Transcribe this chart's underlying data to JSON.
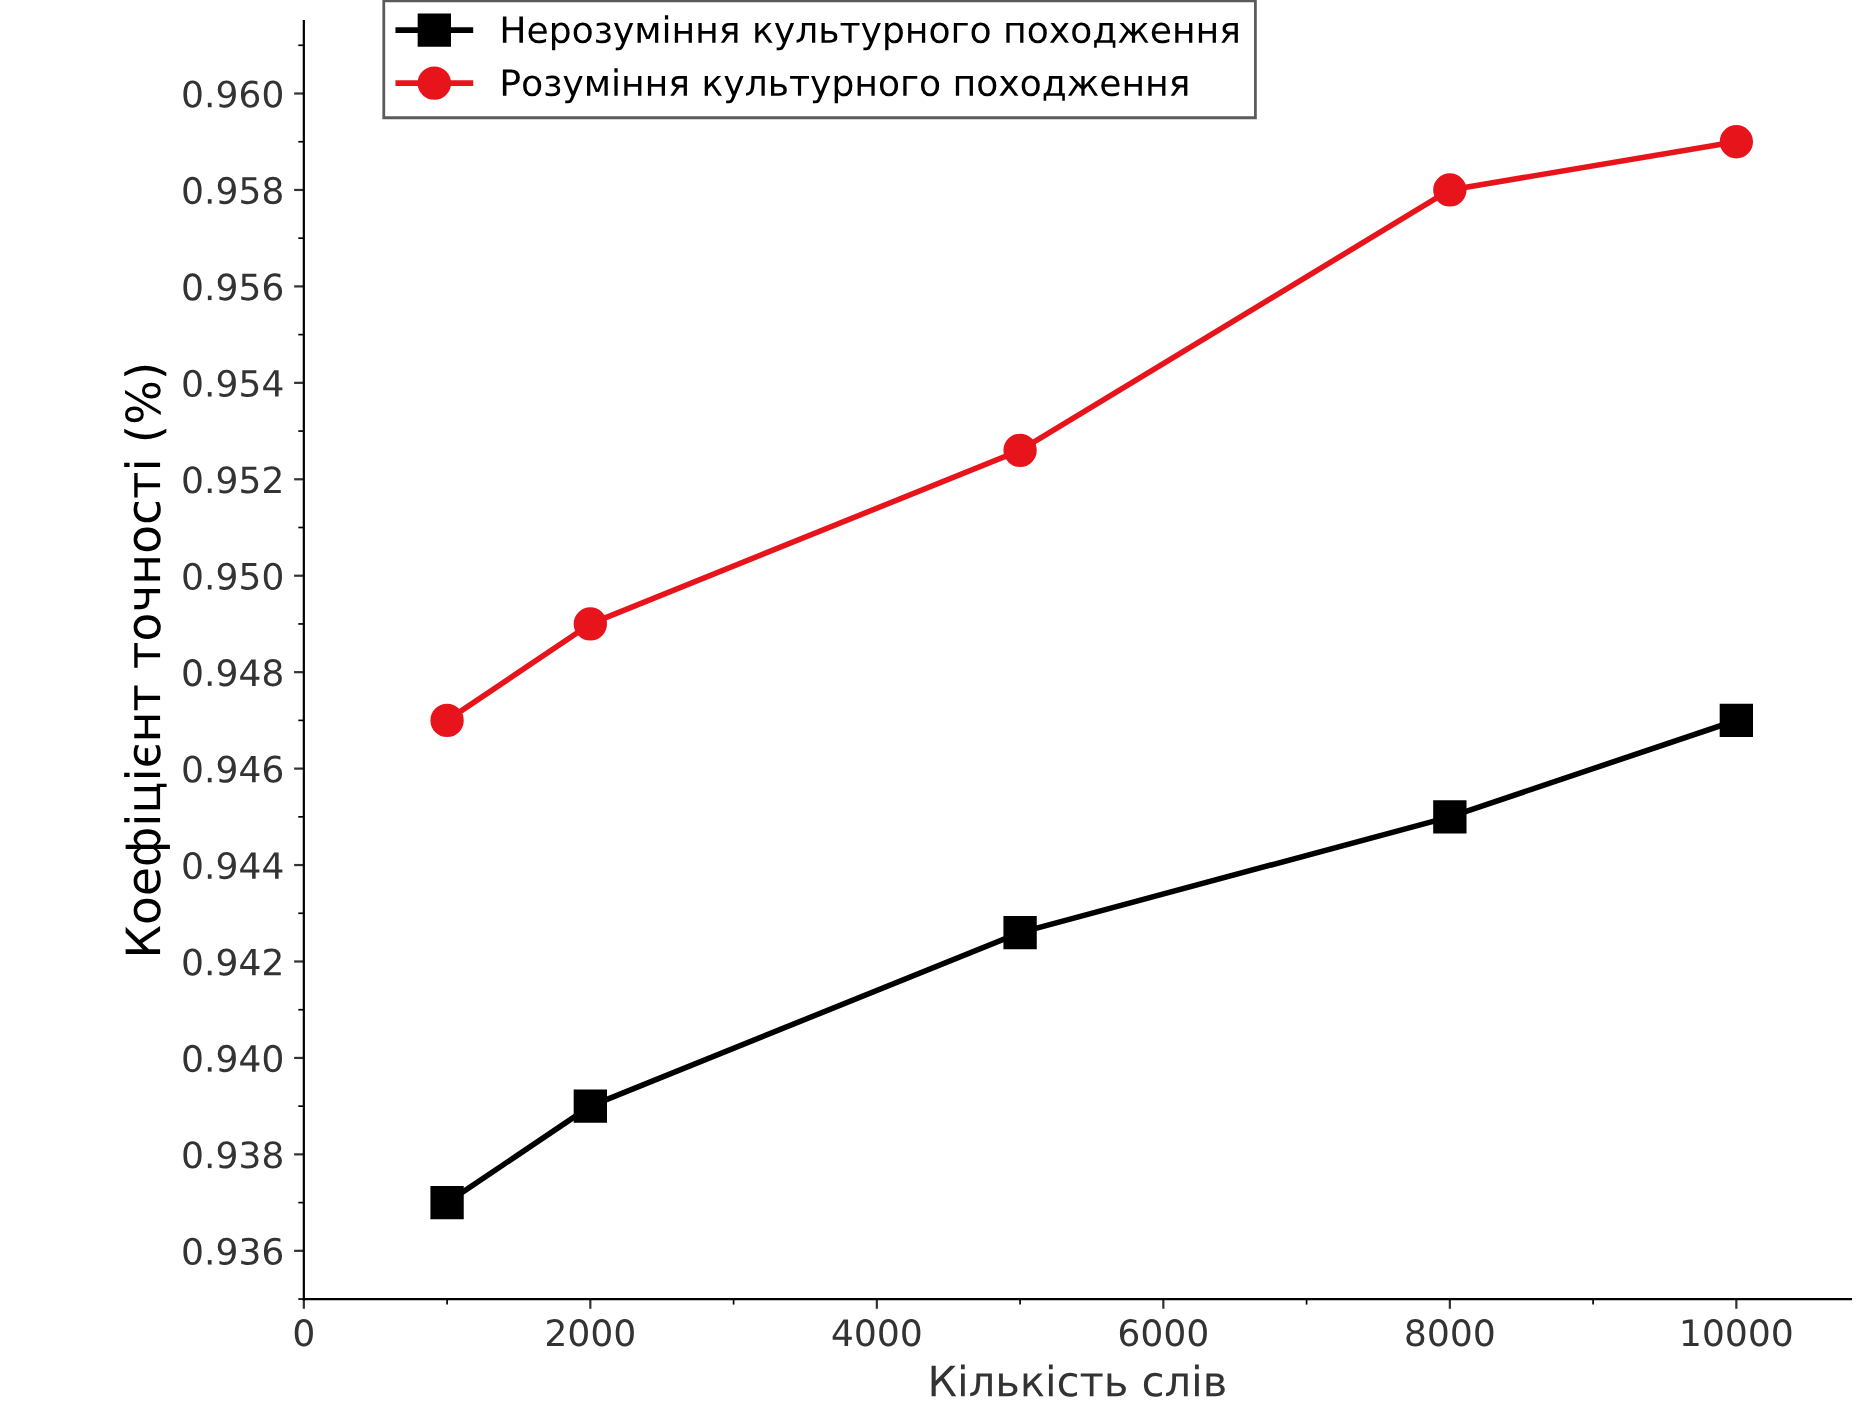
{
  "chart_data": {
    "type": "line",
    "xlabel": "Кількість слів",
    "ylabel": "Коефіцієнт точності (%)",
    "x": [
      1000,
      2000,
      5000,
      8000,
      10000
    ],
    "series": [
      {
        "name": "Нерозуміння культурного походження",
        "color": "#000000",
        "marker": "square",
        "values": [
          0.937,
          0.939,
          0.9426,
          0.945,
          0.947
        ]
      },
      {
        "name": "Розуміння культурного походження",
        "color": "#e8141c",
        "marker": "circle",
        "values": [
          0.947,
          0.949,
          0.9526,
          0.958,
          0.959
        ]
      }
    ],
    "xlim": [
      0,
      10800
    ],
    "xticks": [
      0,
      2000,
      4000,
      6000,
      8000,
      10000
    ],
    "ylim": [
      0.935,
      0.9615
    ],
    "yticks": [
      {
        "value": 0.936,
        "label": "0.936"
      },
      {
        "value": 0.938,
        "label": "0.938"
      },
      {
        "value": 0.94,
        "label": "0.940"
      },
      {
        "value": 0.942,
        "label": "0.942"
      },
      {
        "value": 0.944,
        "label": "0.944"
      },
      {
        "value": 0.946,
        "label": "0.946"
      },
      {
        "value": 0.948,
        "label": "0.948"
      },
      {
        "value": 0.95,
        "label": "0.950"
      },
      {
        "value": 0.952,
        "label": "0.952"
      },
      {
        "value": 0.954,
        "label": "0.954"
      },
      {
        "value": 0.956,
        "label": "0.956"
      },
      {
        "value": 0.958,
        "label": "0.958"
      },
      {
        "value": 0.96,
        "label": "0.960"
      }
    ],
    "legend": "top left",
    "grid": false,
    "line_style": "solid"
  }
}
